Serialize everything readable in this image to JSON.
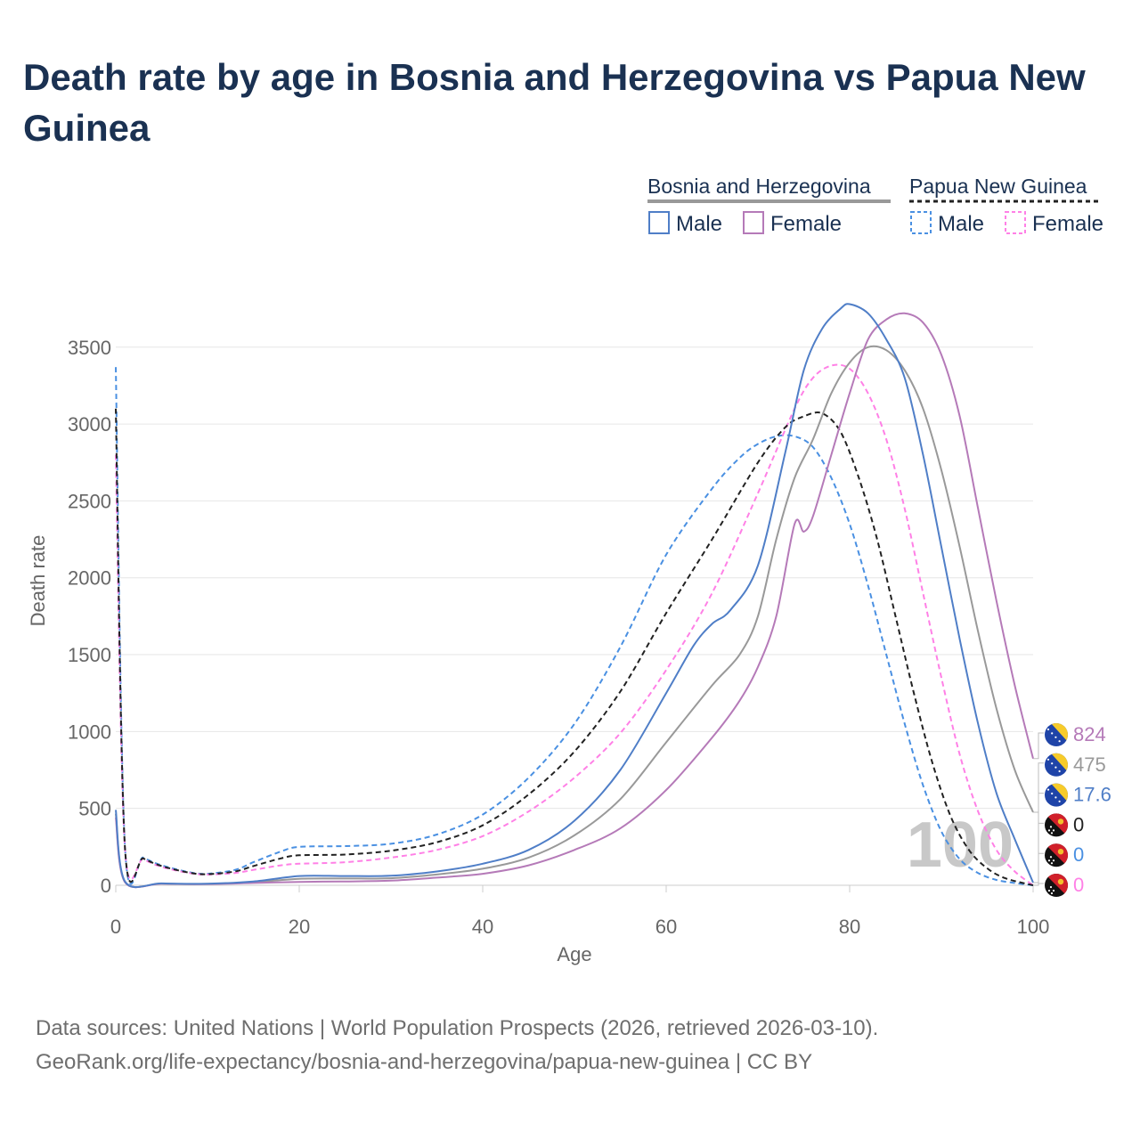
{
  "title": "Death rate by age in Bosnia and Herzegovina vs Papua New Guinea",
  "footer": {
    "line1": "Data sources: United Nations | World Population Prospects (2026, retrieved 2026-03-10).",
    "line2": "GeoRank.org/life-expectancy/bosnia-and-herzegovina/papua-new-guinea | CC BY"
  },
  "legend": {
    "country1": "Bosnia and Herzegovina",
    "country2": "Papua New Guinea",
    "male": "Male",
    "female": "Female"
  },
  "colors": {
    "male": "#4f7ec7",
    "female": "#b57ab8",
    "total1": "#999999",
    "pngMale": "#4a90e2",
    "pngFemale": "#ff80e6",
    "total2": "#222222",
    "title": "#1a3152"
  },
  "chart_data": {
    "type": "line",
    "title": "Death rate by age in Bosnia and Herzegovina vs Papua New Guinea",
    "xlabel": "Age",
    "ylabel": "Death rate",
    "xlim": [
      0,
      100
    ],
    "ylim": [
      0,
      3800
    ],
    "xticks": [
      0,
      20,
      40,
      60,
      80,
      100
    ],
    "yticks": [
      0,
      500,
      1000,
      1500,
      2000,
      2500,
      3000,
      3500
    ],
    "watermark": "100",
    "series": [
      {
        "id": "bih_male",
        "name": "Bosnia and Herzegovina Male",
        "country": "Bosnia and Herzegovina",
        "sex": "Male",
        "dashed": false,
        "points": [
          [
            0,
            490
          ],
          [
            1,
            25
          ],
          [
            5,
            12
          ],
          [
            10,
            10
          ],
          [
            15,
            25
          ],
          [
            20,
            60
          ],
          [
            25,
            60
          ],
          [
            30,
            62
          ],
          [
            35,
            90
          ],
          [
            40,
            140
          ],
          [
            45,
            230
          ],
          [
            50,
            420
          ],
          [
            55,
            750
          ],
          [
            60,
            1250
          ],
          [
            63,
            1560
          ],
          [
            65,
            1700
          ],
          [
            67,
            1790
          ],
          [
            70,
            2080
          ],
          [
            73,
            2820
          ],
          [
            75,
            3350
          ],
          [
            77,
            3620
          ],
          [
            79,
            3750
          ],
          [
            80,
            3780
          ],
          [
            82,
            3720
          ],
          [
            84,
            3550
          ],
          [
            86,
            3300
          ],
          [
            88,
            2800
          ],
          [
            90,
            2200
          ],
          [
            92,
            1600
          ],
          [
            94,
            1050
          ],
          [
            96,
            600
          ],
          [
            98,
            300
          ],
          [
            100,
            17.6
          ]
        ],
        "end_label": "17.6"
      },
      {
        "id": "bih_female",
        "name": "Bosnia and Herzegovina Female",
        "country": "Bosnia and Herzegovina",
        "sex": "Female",
        "dashed": false,
        "points": [
          [
            0,
            440
          ],
          [
            1,
            20
          ],
          [
            5,
            10
          ],
          [
            10,
            8
          ],
          [
            15,
            15
          ],
          [
            20,
            22
          ],
          [
            25,
            25
          ],
          [
            30,
            30
          ],
          [
            35,
            50
          ],
          [
            40,
            75
          ],
          [
            45,
            130
          ],
          [
            50,
            230
          ],
          [
            55,
            370
          ],
          [
            60,
            620
          ],
          [
            65,
            960
          ],
          [
            68,
            1200
          ],
          [
            70,
            1420
          ],
          [
            72,
            1750
          ],
          [
            74,
            2350
          ],
          [
            75,
            2300
          ],
          [
            76,
            2400
          ],
          [
            78,
            2800
          ],
          [
            80,
            3200
          ],
          [
            82,
            3550
          ],
          [
            84,
            3680
          ],
          [
            86,
            3720
          ],
          [
            88,
            3660
          ],
          [
            90,
            3450
          ],
          [
            92,
            3050
          ],
          [
            94,
            2450
          ],
          [
            96,
            1850
          ],
          [
            98,
            1300
          ],
          [
            100,
            824
          ]
        ],
        "end_label": "824"
      },
      {
        "id": "bih_total",
        "name": "Bosnia and Herzegovina Total",
        "country": "Bosnia and Herzegovina",
        "sex": "Total",
        "dashed": false,
        "points": [
          [
            0,
            465
          ],
          [
            1,
            22
          ],
          [
            5,
            11
          ],
          [
            10,
            9
          ],
          [
            15,
            20
          ],
          [
            20,
            42
          ],
          [
            25,
            44
          ],
          [
            30,
            46
          ],
          [
            35,
            70
          ],
          [
            40,
            108
          ],
          [
            45,
            180
          ],
          [
            50,
            325
          ],
          [
            55,
            560
          ],
          [
            60,
            930
          ],
          [
            65,
            1300
          ],
          [
            68,
            1500
          ],
          [
            70,
            1750
          ],
          [
            72,
            2250
          ],
          [
            74,
            2650
          ],
          [
            76,
            2900
          ],
          [
            78,
            3200
          ],
          [
            80,
            3400
          ],
          [
            82,
            3500
          ],
          [
            84,
            3480
          ],
          [
            86,
            3350
          ],
          [
            88,
            3100
          ],
          [
            90,
            2700
          ],
          [
            92,
            2200
          ],
          [
            94,
            1650
          ],
          [
            96,
            1150
          ],
          [
            98,
            750
          ],
          [
            100,
            475
          ]
        ],
        "end_label": "475"
      },
      {
        "id": "png_male",
        "name": "Papua New Guinea Male",
        "country": "Papua New Guinea",
        "sex": "Male",
        "dashed": true,
        "points": [
          [
            0,
            3370
          ],
          [
            1,
            250
          ],
          [
            3,
            180
          ],
          [
            5,
            130
          ],
          [
            8,
            85
          ],
          [
            10,
            75
          ],
          [
            13,
            100
          ],
          [
            15,
            150
          ],
          [
            18,
            220
          ],
          [
            20,
            250
          ],
          [
            25,
            255
          ],
          [
            30,
            270
          ],
          [
            35,
            330
          ],
          [
            40,
            460
          ],
          [
            45,
            700
          ],
          [
            50,
            1050
          ],
          [
            55,
            1550
          ],
          [
            60,
            2150
          ],
          [
            65,
            2580
          ],
          [
            68,
            2780
          ],
          [
            70,
            2870
          ],
          [
            72,
            2920
          ],
          [
            74,
            2920
          ],
          [
            76,
            2850
          ],
          [
            78,
            2650
          ],
          [
            80,
            2350
          ],
          [
            82,
            1950
          ],
          [
            84,
            1500
          ],
          [
            86,
            1050
          ],
          [
            88,
            650
          ],
          [
            90,
            350
          ],
          [
            92,
            170
          ],
          [
            94,
            80
          ],
          [
            96,
            35
          ],
          [
            98,
            15
          ],
          [
            100,
            0
          ]
        ],
        "end_label": "0"
      },
      {
        "id": "png_female",
        "name": "Papua New Guinea Female",
        "country": "Papua New Guinea",
        "sex": "Female",
        "dashed": true,
        "points": [
          [
            0,
            2800
          ],
          [
            1,
            240
          ],
          [
            3,
            170
          ],
          [
            5,
            120
          ],
          [
            8,
            80
          ],
          [
            10,
            70
          ],
          [
            13,
            80
          ],
          [
            15,
            100
          ],
          [
            18,
            130
          ],
          [
            20,
            140
          ],
          [
            25,
            150
          ],
          [
            30,
            180
          ],
          [
            35,
            230
          ],
          [
            40,
            320
          ],
          [
            45,
            480
          ],
          [
            50,
            700
          ],
          [
            55,
            990
          ],
          [
            60,
            1400
          ],
          [
            65,
            1900
          ],
          [
            70,
            2550
          ],
          [
            74,
            3100
          ],
          [
            76,
            3300
          ],
          [
            78,
            3380
          ],
          [
            80,
            3360
          ],
          [
            82,
            3200
          ],
          [
            84,
            2900
          ],
          [
            86,
            2450
          ],
          [
            88,
            1900
          ],
          [
            90,
            1350
          ],
          [
            92,
            850
          ],
          [
            94,
            480
          ],
          [
            96,
            230
          ],
          [
            98,
            90
          ],
          [
            100,
            0
          ]
        ],
        "end_label": "0"
      },
      {
        "id": "png_total",
        "name": "Papua New Guinea Total",
        "country": "Papua New Guinea",
        "sex": "Total",
        "dashed": true,
        "points": [
          [
            0,
            3100
          ],
          [
            1,
            245
          ],
          [
            3,
            175
          ],
          [
            5,
            125
          ],
          [
            8,
            82
          ],
          [
            10,
            72
          ],
          [
            13,
            90
          ],
          [
            15,
            125
          ],
          [
            18,
            175
          ],
          [
            20,
            195
          ],
          [
            25,
            200
          ],
          [
            30,
            225
          ],
          [
            35,
            280
          ],
          [
            40,
            390
          ],
          [
            45,
            590
          ],
          [
            50,
            870
          ],
          [
            55,
            1260
          ],
          [
            60,
            1770
          ],
          [
            65,
            2250
          ],
          [
            70,
            2750
          ],
          [
            73,
            2980
          ],
          [
            75,
            3050
          ],
          [
            77,
            3070
          ],
          [
            79,
            2950
          ],
          [
            81,
            2650
          ],
          [
            83,
            2250
          ],
          [
            85,
            1750
          ],
          [
            87,
            1250
          ],
          [
            89,
            800
          ],
          [
            91,
            450
          ],
          [
            93,
            230
          ],
          [
            95,
            110
          ],
          [
            97,
            45
          ],
          [
            100,
            0
          ]
        ],
        "end_label": "0"
      }
    ]
  }
}
